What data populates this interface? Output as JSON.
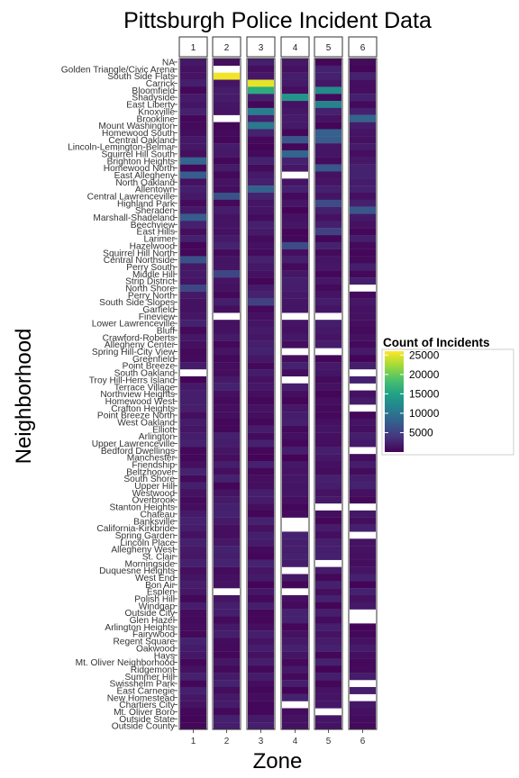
{
  "chart_data": {
    "type": "heatmap",
    "title": "Pittsburgh Police Incident Data",
    "xlabel": "Zone",
    "ylabel": "Neighborhood",
    "facets": [
      "1",
      "2",
      "3",
      "4",
      "5",
      "6"
    ],
    "neighborhoods": [
      "NA",
      "Golden Triangle/Civic Arena",
      "South Side Flats",
      "Carrick",
      "Bloomfield",
      "Shadyside",
      "East Liberty",
      "Knoxville",
      "Brookline",
      "Mount Washington",
      "Homewood South",
      "Central Oakland",
      "Lincoln-Lemington-Belmar",
      "Squirrel Hill South",
      "Brighton Heights",
      "Homewood North",
      "East Allegheny",
      "North Oakland",
      "Allentown",
      "Central Lawrenceville",
      "Highland Park",
      "Sheraden",
      "Marshall-Shadeland",
      "Beechview",
      "East Hills",
      "Larimer",
      "Hazelwood",
      "Squirrel Hill North",
      "Central Northside",
      "Perry South",
      "Middle Hill",
      "Strip District",
      "North Shore",
      "Perry North",
      "South Side Slopes",
      "Garfield",
      "Fineview",
      "Lower Lawrenceville",
      "Bluff",
      "Crawford-Roberts",
      "Allegheny Center",
      "Spring Hill-City View",
      "Greenfield",
      "Point Breeze",
      "South Oakland",
      "Troy Hill-Herrs Island",
      "Terrace Village",
      "Northview Heights",
      "Homewood West",
      "Crafton Heights",
      "Point Breeze North",
      "West Oakland",
      "Elliott",
      "Arlington",
      "Upper Lawrenceville",
      "Bedford Dwellings",
      "Manchester",
      "Friendship",
      "Beltzhoover",
      "South Shore",
      "Upper Hill",
      "Westwood",
      "Overbrook",
      "Stanton Heights",
      "Chateau",
      "Banksville",
      "California-Kirkbride",
      "Spring Garden",
      "Lincoln Place",
      "Allegheny West",
      "St. Clair",
      "Morningside",
      "Duquesne Heights",
      "West End",
      "Bon Air",
      "Esplen",
      "Polish Hill",
      "Windgap",
      "Outside City",
      "Glen Hazel",
      "Arlington Heights",
      "Fairywood",
      "Regent Square",
      "Oakwood",
      "Hays",
      "Mt. Oliver Neighborhood",
      "Ridgemont",
      "Summer Hill",
      "Swisshelm Park",
      "East Carnegie",
      "New Homestead",
      "Chartiers City",
      "Mt. Oliver Boro",
      "Outside State",
      "Outside County"
    ],
    "missing_cells": {
      "1": [
        44
      ],
      "2": [
        1,
        8,
        36,
        75
      ],
      "3": [],
      "4": [
        16,
        36,
        41,
        45,
        65,
        66,
        72,
        75,
        91
      ],
      "5": [
        36,
        41,
        63,
        71,
        92
      ],
      "6": [
        32,
        44,
        46,
        49,
        55,
        63,
        67,
        78,
        79,
        88,
        90
      ]
    },
    "notable_counts": [
      {
        "zone": "2",
        "neighborhood": "South Side Flats",
        "count": 25500
      },
      {
        "zone": "3",
        "neighborhood": "Carrick",
        "count": 25000
      },
      {
        "zone": "3",
        "neighborhood": "Bloomfield",
        "count": 16000
      },
      {
        "zone": "4",
        "neighborhood": "Shadyside",
        "count": 13500
      },
      {
        "zone": "5",
        "neighborhood": "Bloomfield",
        "count": 12500
      },
      {
        "zone": "5",
        "neighborhood": "East Liberty",
        "count": 11500
      },
      {
        "zone": "3",
        "neighborhood": "Knoxville",
        "count": 11000
      },
      {
        "zone": "3",
        "neighborhood": "Mount Washington",
        "count": 10500
      },
      {
        "zone": "6",
        "neighborhood": "Brookline",
        "count": 8500
      },
      {
        "zone": "5",
        "neighborhood": "Central Oakland",
        "count": 7500
      },
      {
        "zone": "5",
        "neighborhood": "Homewood South",
        "count": 8000
      },
      {
        "zone": "4",
        "neighborhood": "Central Oakland",
        "count": 7000
      },
      {
        "zone": "4",
        "neighborhood": "Squirrel Hill South",
        "count": 8500
      },
      {
        "zone": "1",
        "neighborhood": "Brighton Heights",
        "count": 8500
      },
      {
        "zone": "1",
        "neighborhood": "East Allegheny",
        "count": 7500
      },
      {
        "zone": "5",
        "neighborhood": "Homewood North",
        "count": 7000
      },
      {
        "zone": "3",
        "neighborhood": "Allentown",
        "count": 8000
      },
      {
        "zone": "2",
        "neighborhood": "Central Lawrenceville",
        "count": 6500
      },
      {
        "zone": "1",
        "neighborhood": "Marshall-Shadeland",
        "count": 7500
      },
      {
        "zone": "5",
        "neighborhood": "Highland Park",
        "count": 6000
      },
      {
        "zone": "6",
        "neighborhood": "Sheraden",
        "count": 7000
      },
      {
        "zone": "4",
        "neighborhood": "Hazelwood",
        "count": 6000
      },
      {
        "zone": "1",
        "neighborhood": "Central Northside",
        "count": 6500
      },
      {
        "zone": "2",
        "neighborhood": "Middle Hill",
        "count": 5500
      },
      {
        "zone": "1",
        "neighborhood": "North Shore",
        "count": 5500
      },
      {
        "zone": "5",
        "neighborhood": "East Hills",
        "count": 5000
      },
      {
        "zone": "3",
        "neighborhood": "South Side Slopes",
        "count": 5000
      },
      {
        "zone": "4",
        "neighborhood": "East Allegheny",
        "count": 5500
      }
    ],
    "color_scale": {
      "name": "viridis",
      "min": 0,
      "max": 26000,
      "stops": [
        "#440154",
        "#46337e",
        "#365c8d",
        "#277f8e",
        "#1fa187",
        "#4ac16d",
        "#a0da39",
        "#fde725"
      ],
      "missing_color": "#ffffff"
    },
    "legend": {
      "title": "Count of Incidents",
      "ticks": [
        25000,
        20000,
        15000,
        10000,
        5000
      ],
      "tick_labels": [
        "25000",
        "20000",
        "15000",
        "10000",
        "5000"
      ],
      "position": "right"
    }
  }
}
